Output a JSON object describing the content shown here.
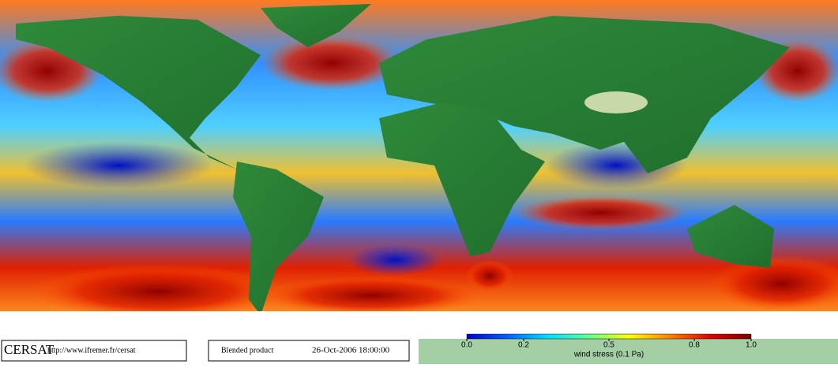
{
  "map": {
    "logo": "CERSAT",
    "url": "http://www.ifremer.fr/cersat",
    "product": "Blended product",
    "datetime": "26-Oct-2006 18:00:00"
  },
  "colorbar": {
    "title": "wind stress (0.1 Pa)",
    "lim": [
      0,
      1
    ],
    "ticks": [
      {
        "value": 0,
        "label": "0.0"
      },
      {
        "value": 0.2,
        "label": "0.2"
      },
      {
        "value": 0.5,
        "label": "0.5"
      },
      {
        "value": 0.8,
        "label": "0.8"
      },
      {
        "value": 1,
        "label": "1.0"
      }
    ],
    "colors": [
      "#0000c8",
      "#0060ff",
      "#00e0ff",
      "#60ff90",
      "#ffff00",
      "#ff8000",
      "#e00000",
      "#780000"
    ]
  }
}
